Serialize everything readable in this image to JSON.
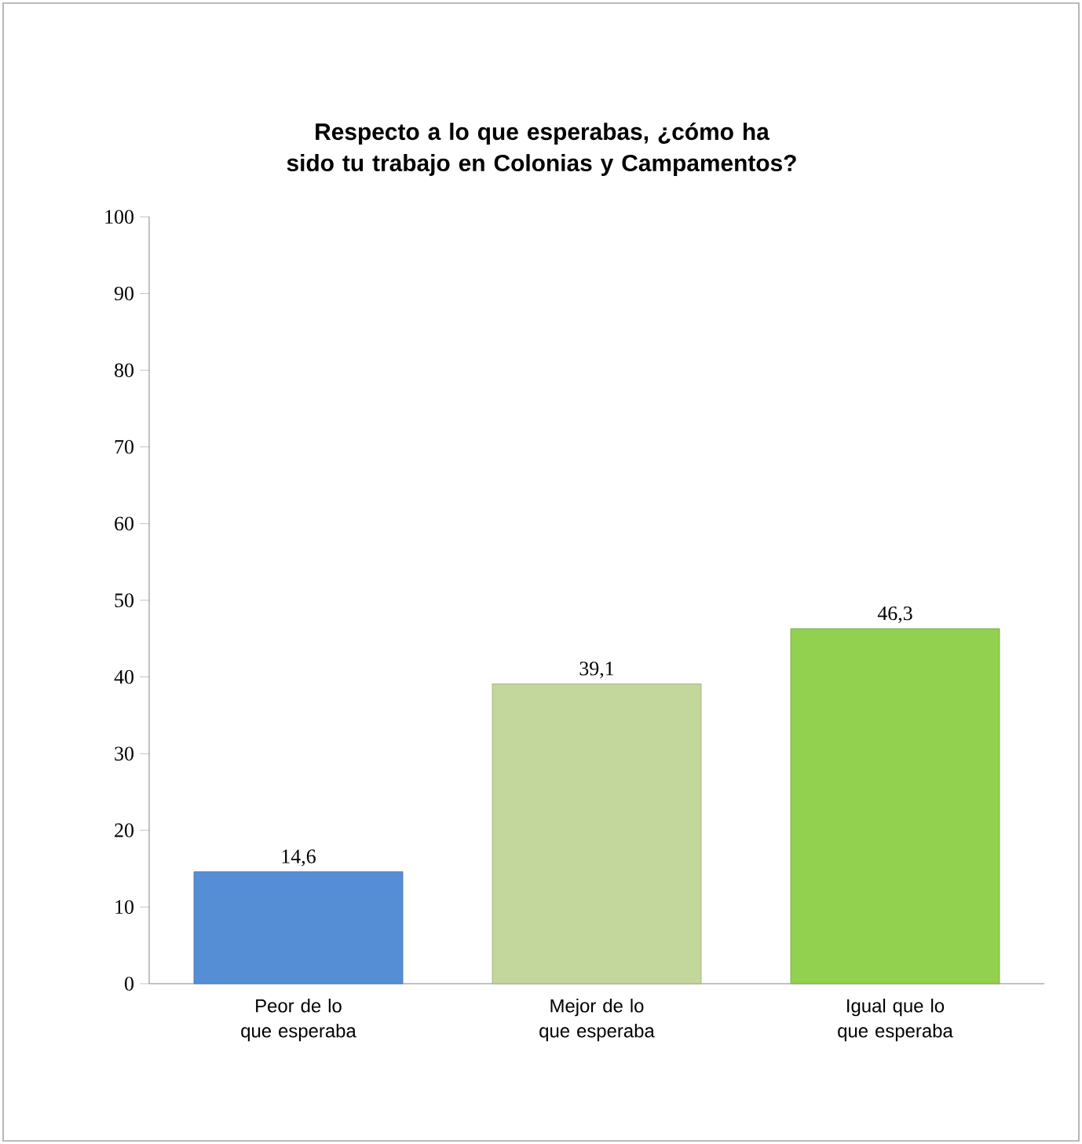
{
  "chart_data": {
    "type": "bar",
    "title": "Respecto a lo que esperabas, ¿cómo ha sido tu trabajo en Colonias y Campamentos?",
    "categories": [
      "Peor de lo que esperaba",
      "Mejor de lo que esperaba",
      "Igual que lo que esperaba"
    ],
    "values": [
      14.6,
      39.1,
      46.3
    ],
    "colors": [
      "#558ed5",
      "#c3d69b",
      "#92d050"
    ],
    "value_labels": [
      "14,6",
      "39,1",
      "46,3"
    ],
    "ylim": [
      0,
      100
    ],
    "yticks": [
      0,
      10,
      20,
      30,
      40,
      50,
      60,
      70,
      80,
      90,
      100
    ],
    "grid": false
  }
}
